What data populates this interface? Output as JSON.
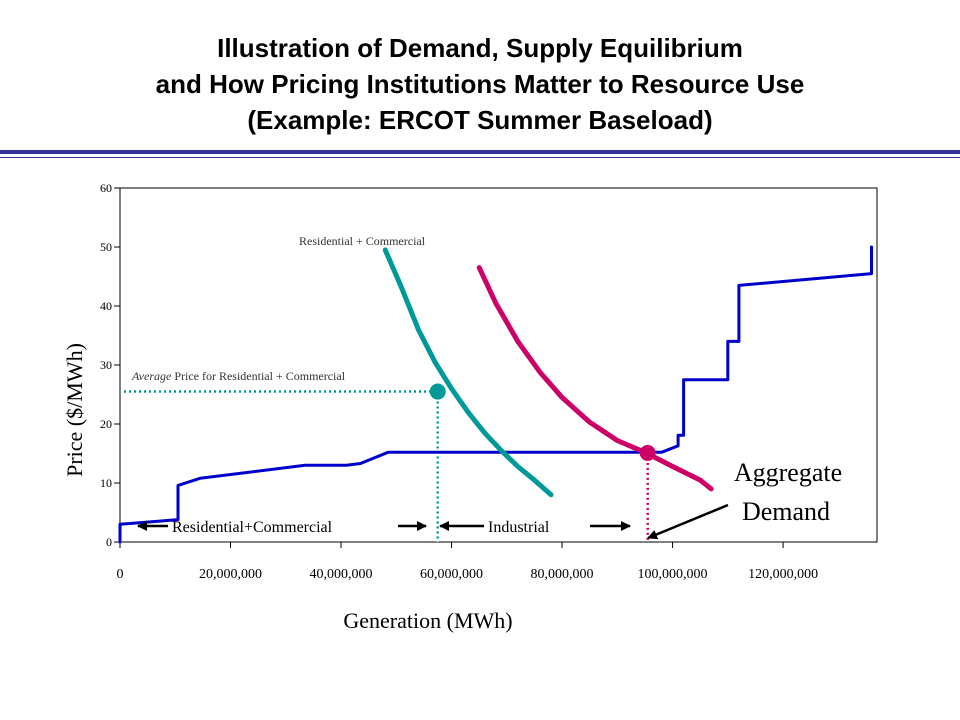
{
  "title": {
    "line1": "Illustration of Demand, Supply Equilibrium",
    "line2": "and How Pricing Institutions Matter to Resource Use",
    "line3": "(Example: ERCOT Summer Baseload)"
  },
  "chart_data": {
    "type": "line",
    "xlabel": "Generation (MWh)",
    "ylabel": "Price ($/MWh)",
    "xlim": [
      0,
      137000000
    ],
    "ylim": [
      0,
      60
    ],
    "x_ticks": [
      "0",
      "20,000,000",
      "40,000,000",
      "60,000,000",
      "80,000,000",
      "100,000,000",
      "120,000,000"
    ],
    "x_tick_values": [
      0,
      20000000,
      40000000,
      60000000,
      80000000,
      100000000,
      120000000
    ],
    "y_ticks": [
      "0",
      "10",
      "20",
      "30",
      "40",
      "50",
      "60"
    ],
    "y_tick_values": [
      0,
      10,
      20,
      30,
      40,
      50,
      60
    ],
    "series": [
      {
        "color": "#0000cc",
        "points": [
          [
            0,
            0
          ],
          [
            0,
            3
          ],
          [
            10.5,
            3.8
          ],
          [
            10.5,
            9.6
          ],
          [
            14.5,
            10.8
          ],
          [
            33.5,
            13
          ],
          [
            41,
            13
          ],
          [
            43.5,
            13.3
          ],
          [
            48.5,
            15.2
          ],
          [
            96,
            15.2
          ],
          [
            98,
            15.2
          ],
          [
            101,
            16.3
          ],
          [
            101,
            18.1
          ],
          [
            102,
            18.1
          ],
          [
            102,
            27.5
          ],
          [
            110,
            27.5
          ],
          [
            110,
            34
          ],
          [
            112,
            34
          ],
          [
            112,
            43.5
          ],
          [
            136,
            45.5
          ],
          [
            136,
            50
          ]
        ]
      },
      {
        "name": "Residential + Commercial",
        "color": "#009999",
        "points": [
          [
            48,
            49.5
          ],
          [
            51,
            43
          ],
          [
            54,
            36
          ],
          [
            57,
            30.5
          ],
          [
            60,
            26
          ],
          [
            63,
            22
          ],
          [
            66,
            18.5
          ],
          [
            69,
            15.5
          ],
          [
            72,
            12.8
          ],
          [
            75,
            10.5
          ],
          [
            78,
            8
          ]
        ]
      },
      {
        "color": "#cc0066",
        "points": [
          [
            65,
            46.5
          ],
          [
            68,
            40.5
          ],
          [
            72,
            34
          ],
          [
            76,
            28.8
          ],
          [
            80,
            24.5
          ],
          [
            85,
            20.3
          ],
          [
            90,
            17.2
          ],
          [
            95,
            15.2
          ],
          [
            100,
            12.8
          ],
          [
            105,
            10.5
          ],
          [
            107,
            9
          ]
        ]
      }
    ],
    "equilibrium_points": [
      {
        "x": 57.5,
        "y": 25.5,
        "color": "#009999"
      },
      {
        "x": 95.5,
        "y": 15.1,
        "color": "#cc0066"
      }
    ],
    "x_unit_note": "x values in millions of MWh",
    "annotations": {
      "res_com_curve": "Residential + Commercial",
      "avg_price_italic": "Average",
      "avg_price_rest": " Price for Residential + Commercial",
      "aggregate_line1": "Aggregate",
      "aggregate_line2": "Demand",
      "seg_res_com": "Residential+Commercial",
      "seg_industrial": "Industrial"
    },
    "grid": false,
    "legend": "none"
  }
}
